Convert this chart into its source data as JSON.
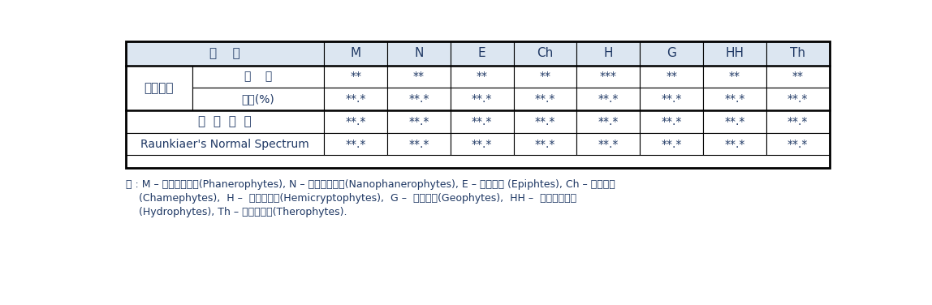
{
  "col_headers_left": "구    분",
  "col_headers_right": [
    "M",
    "N",
    "E",
    "Ch",
    "H",
    "G",
    "HH",
    "Th"
  ],
  "group_label": "조사지역",
  "sub_row1_label": "종    수",
  "sub_row1_values": [
    "**",
    "**",
    "**",
    "**",
    "***",
    "**",
    "**",
    "**"
  ],
  "sub_row2_label": "비율(%)",
  "sub_row2_values": [
    "**.*",
    "**.*",
    "**.*",
    "**.*",
    "**.*",
    "**.*",
    "**.*",
    "**.*"
  ],
  "row3_label": "남  한  지  역",
  "row3_values": [
    "**.*",
    "**.*",
    "**.*",
    "**.*",
    "**.*",
    "**.*",
    "**.*",
    "**.*"
  ],
  "row4_label": "Raunkiaer's Normal Spectrum",
  "row4_values": [
    "**.*",
    "**.*",
    "**.*",
    "**.*",
    "**.*",
    "**.*",
    "**.*",
    "**.*"
  ],
  "footnote_line1": "주 : M – 대형육상식물(Phanerophytes), N – 소형육상식물(Nanophanerophytes), E – 착생식물 (Epiphtes), Ch – 지표식물",
  "footnote_line2": "    (Chamephytes),  H –  반지중식물(Hemicryptophytes),  G –  지중식물(Geophytes),  HH –  근생수생식물",
  "footnote_line3": "    (Hydrophytes), Th – 일년생식물(Therophytes).",
  "header_bg": "#dce6f1",
  "border_color": "#000000",
  "text_color": "#1f3864",
  "footnote_color": "#1f3864"
}
